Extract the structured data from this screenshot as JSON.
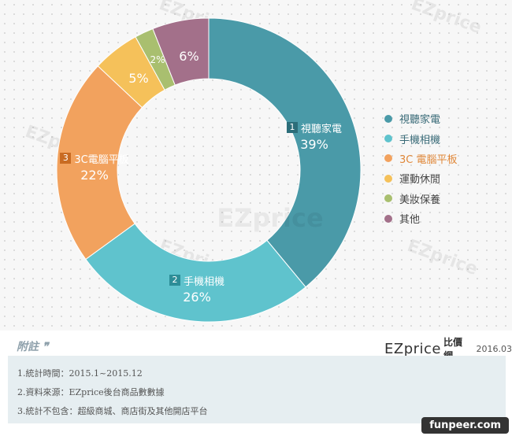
{
  "chart_data": {
    "type": "donut",
    "slices": [
      {
        "label": "視聽家電",
        "value": 39,
        "display": "39%",
        "num": "1",
        "color": "#4a9aa8"
      },
      {
        "label": "手機相機",
        "value": 26,
        "display": "26%",
        "num": "2",
        "color": "#5fc3cd"
      },
      {
        "label": "3C電腦平板",
        "value": 22,
        "display": "22%",
        "num": "3",
        "color": "#f2a25e"
      },
      {
        "label": "運動休閒",
        "value": 5,
        "display": "5%",
        "num": "",
        "color": "#f5c15a"
      },
      {
        "label": "美妝保養",
        "value": 2,
        "display": "2%",
        "num": "",
        "color": "#a9bf6f"
      },
      {
        "label": "其他",
        "value": 6,
        "display": "6%",
        "num": "",
        "color": "#a3708a"
      }
    ],
    "legend": [
      "視聽家電",
      "手機相機",
      "3C 電腦平板",
      "運動休閒",
      "美妝保養",
      "其他"
    ],
    "legend_placement": "right",
    "center_watermark": "EZprice"
  },
  "watermark_text": "EZprice",
  "logo": {
    "main": "EZprice",
    "cn": "比價網",
    "date": "2016.03"
  },
  "notes": {
    "title": "附註",
    "lines": [
      "1.統計時間：2015.1~2015.12",
      "2.資料來源：EZprice後台商品數數據",
      "3.統計不包含：超級商城、商店街及其他開店平台"
    ]
  },
  "footer_tag": "funpeer.com"
}
